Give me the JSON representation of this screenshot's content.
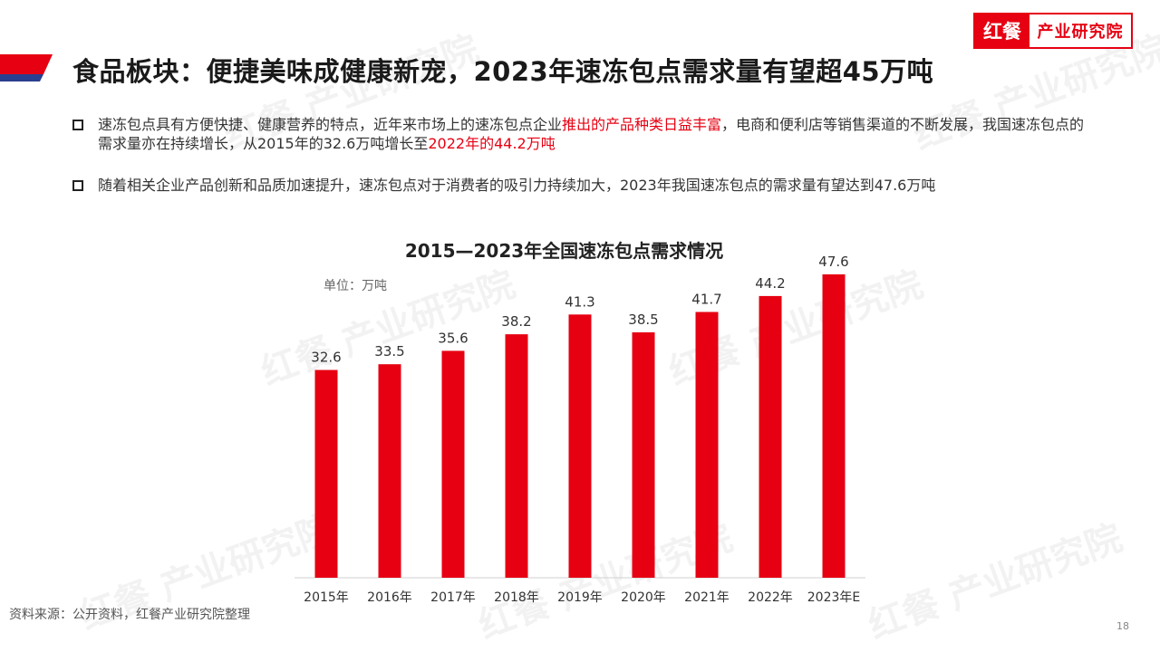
{
  "brand": {
    "logo_mark": "红餐",
    "logo_text": "产业研究院",
    "accent_color": "#e60012",
    "secondary_color": "#2a3f8f"
  },
  "slide": {
    "title": "食品板块：便捷美味成健康新宠，2023年速冻包点需求量有望超45万吨",
    "page_number": "18"
  },
  "bullets": [
    {
      "parts": [
        {
          "text": "速冻包点具有方便快捷、健康营养的特点，近年来市场上的速冻包点企业",
          "highlight": false
        },
        {
          "text": "推出的产品种类日益丰富",
          "highlight": true
        },
        {
          "text": "，电商和便利店等销售渠道的不断发展，我国速冻包点的需求量亦在持续增长，从2015年的32.6万吨增长至",
          "highlight": false
        },
        {
          "text": "2022年的44.2万吨",
          "highlight": true
        }
      ]
    },
    {
      "parts": [
        {
          "text": "随着相关企业产品创新和品质加速提升，速冻包点对于消费者的吸引力持续加大，2023年我国速冻包点的需求量有望达到47.6万吨",
          "highlight": false
        }
      ]
    }
  ],
  "chart_data": {
    "type": "bar",
    "title": "2015—2023年全国速冻包点需求情况",
    "unit_label": "单位：万吨",
    "categories": [
      "2015年",
      "2016年",
      "2017年",
      "2018年",
      "2019年",
      "2020年",
      "2021年",
      "2022年",
      "2023年E"
    ],
    "values": [
      32.6,
      33.5,
      35.6,
      38.2,
      41.3,
      38.5,
      41.7,
      44.2,
      47.6
    ],
    "bar_color": "#e60012",
    "ylim": [
      0,
      52
    ],
    "grid": false,
    "legend": "none"
  },
  "source": "资料来源：公开资料，红餐产业研究院整理",
  "watermark_text": "红餐 产业研究院"
}
